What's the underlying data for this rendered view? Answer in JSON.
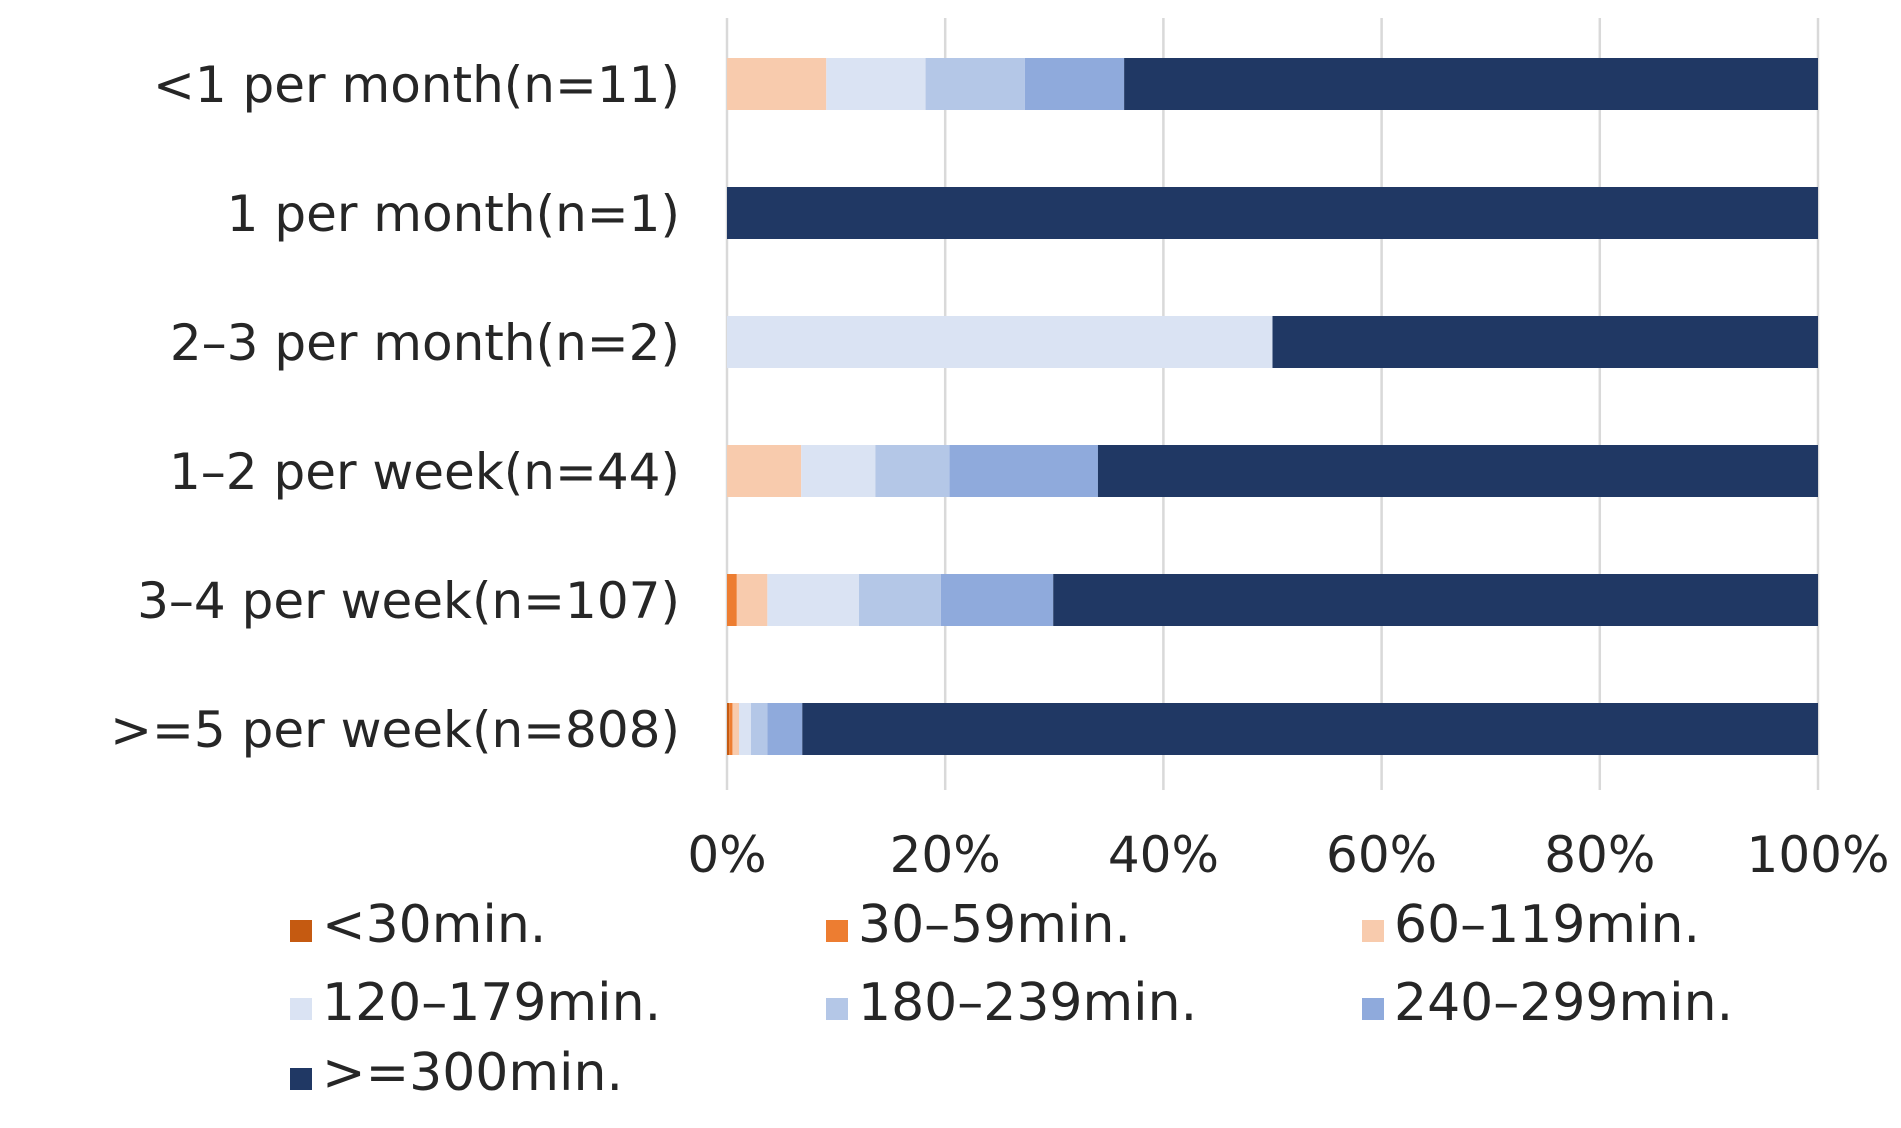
{
  "chart_data": {
    "type": "bar",
    "orientation": "horizontal",
    "stacked": "percent",
    "title": "",
    "xlabel": "",
    "ylabel": "",
    "xlim": [
      0,
      100
    ],
    "x_ticks": [
      "0%",
      "20%",
      "40%",
      "60%",
      "80%",
      "100%"
    ],
    "grid": "vertical",
    "legend": "bottom",
    "categories": [
      "<1 per month(n=11)",
      "1 per month(n=1)",
      "2–3 per month(n=2)",
      "1–2 per week(n=44)",
      "3–4 per week(n=107)",
      ">=5 per week(n=808)"
    ],
    "series": [
      {
        "name": "<30min.",
        "color": "#c55a11",
        "values": [
          0,
          0,
          0,
          0,
          0,
          0.2
        ]
      },
      {
        "name": "30–59min.",
        "color": "#ed7d31",
        "values": [
          0,
          0,
          0,
          0,
          0.9,
          0.3
        ]
      },
      {
        "name": "60–119min.",
        "color": "#f8cbad",
        "values": [
          9.1,
          0,
          0,
          6.8,
          2.8,
          0.6
        ]
      },
      {
        "name": "120–179min.",
        "color": "#dae3f3",
        "values": [
          9.1,
          0,
          50,
          6.8,
          8.4,
          1.1
        ]
      },
      {
        "name": "180–239min.",
        "color": "#b4c7e7",
        "values": [
          9.1,
          0,
          0,
          6.8,
          7.5,
          1.5
        ]
      },
      {
        "name": "240–299min.",
        "color": "#8faadc",
        "values": [
          9.1,
          0,
          0,
          13.6,
          10.3,
          3.2
        ]
      },
      {
        "name": ">=300min.",
        "color": "#203864",
        "values": [
          63.6,
          100,
          50,
          66.0,
          70.1,
          93.1
        ]
      }
    ]
  }
}
